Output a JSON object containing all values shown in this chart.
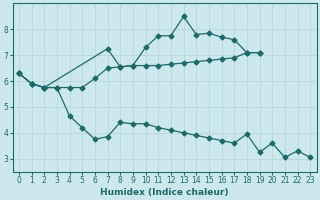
{
  "xlabel": "Humidex (Indice chaleur)",
  "bg_color": "#cde8ec",
  "line_color": "#1a6b6b",
  "grid_color": "#b8d8dc",
  "xlim": [
    -0.5,
    23.5
  ],
  "ylim": [
    2.5,
    9.0
  ],
  "yticks": [
    3,
    4,
    5,
    6,
    7,
    8
  ],
  "xticks": [
    0,
    1,
    2,
    3,
    4,
    5,
    6,
    7,
    8,
    9,
    10,
    11,
    12,
    13,
    14,
    15,
    16,
    17,
    18,
    19,
    20,
    21,
    22,
    23
  ],
  "series1_x": [
    0,
    1,
    2,
    7,
    8,
    9,
    10,
    11,
    12,
    13,
    14,
    15,
    16,
    17,
    18,
    19
  ],
  "series1_y": [
    6.3,
    5.9,
    5.75,
    7.25,
    6.55,
    6.6,
    7.3,
    7.75,
    7.75,
    8.5,
    7.8,
    7.85,
    7.7,
    7.6,
    7.1,
    7.1
  ],
  "series2_x": [
    0,
    1,
    2,
    3,
    4,
    5,
    6,
    7,
    8,
    9,
    10,
    11,
    12,
    13,
    14,
    15,
    16,
    17,
    18,
    19
  ],
  "series2_y": [
    6.3,
    5.9,
    5.75,
    5.75,
    5.75,
    5.75,
    6.1,
    6.5,
    6.55,
    6.6,
    6.6,
    6.6,
    6.65,
    6.7,
    6.75,
    6.8,
    6.85,
    6.9,
    7.1,
    7.1
  ],
  "series3_x": [
    0,
    1,
    2,
    3,
    4,
    5,
    6,
    7,
    8,
    9,
    10,
    11,
    12,
    13,
    14,
    15,
    16,
    17,
    18,
    19,
    20,
    21,
    22,
    23
  ],
  "series3_y": [
    6.3,
    5.9,
    5.75,
    5.75,
    4.65,
    4.2,
    3.75,
    3.85,
    4.4,
    4.35,
    4.35,
    4.2,
    4.1,
    4.0,
    3.9,
    3.8,
    3.7,
    3.6,
    3.95,
    3.25,
    3.6,
    3.05,
    3.3,
    3.05
  ]
}
